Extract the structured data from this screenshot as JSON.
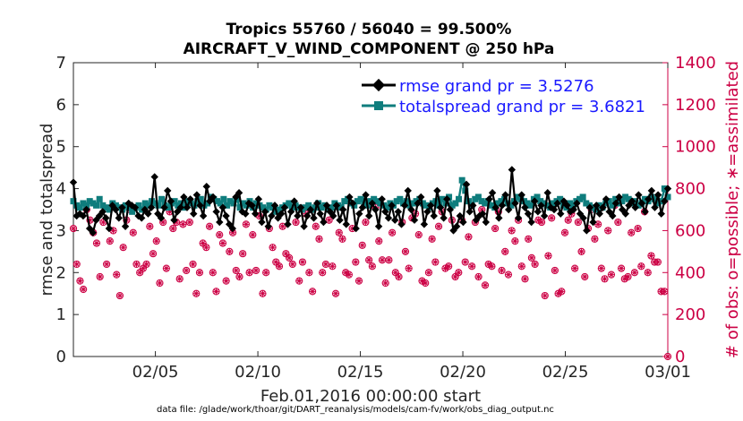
{
  "chart_data": {
    "type": "line",
    "title_line1": "Tropics 55760 / 56040 = 99.500%",
    "title_line2": "AIRCRAFT_V_WIND_COMPONENT @ 250 hPa",
    "ylabel_left": "rmse and totalspread",
    "ylabel_right": "# of obs: o=possible; ∗=assimilated",
    "xlabel": "Feb.01,2016 00:00:00 start",
    "footnote": "data file: /glade/work/thoar/git/DART_reanalysis/models/cam-fv/work/obs_diag_output.nc",
    "x_range_days": [
      1,
      30
    ],
    "ylim_left": [
      0,
      7
    ],
    "ylim_right": [
      0,
      1400
    ],
    "yticks_left": [
      "0",
      "1",
      "2",
      "3",
      "4",
      "5",
      "6",
      "7"
    ],
    "yticks_right": [
      "0",
      "200",
      "400",
      "600",
      "800",
      "1000",
      "1200",
      "1400"
    ],
    "xticks": [
      {
        "day": 5,
        "label": "02/05"
      },
      {
        "day": 10,
        "label": "02/10"
      },
      {
        "day": 15,
        "label": "02/15"
      },
      {
        "day": 20,
        "label": "02/20"
      },
      {
        "day": 25,
        "label": "02/25"
      },
      {
        "day": 30,
        "label": "03/01"
      }
    ],
    "legend_position": "top-right",
    "colors": {
      "rmse": "#000000",
      "spread": "#0f7d7d",
      "obs": "#cc0044",
      "legend_text": "#1a1aff"
    },
    "series": [
      {
        "name": "rmse grand pr = 3.5276",
        "key": "rmse",
        "values": [
          4.15,
          3.35,
          3.4,
          3.35,
          3.5,
          3.05,
          2.95,
          3.25,
          3.35,
          3.45,
          3.3,
          3.05,
          3.6,
          3.5,
          3.3,
          3.55,
          3.1,
          3.65,
          3.6,
          3.55,
          3.35,
          3.3,
          3.5,
          3.4,
          3.55,
          4.28,
          3.4,
          3.3,
          3.55,
          3.95,
          3.7,
          3.25,
          3.45,
          3.55,
          3.8,
          3.55,
          3.75,
          3.4,
          3.85,
          3.6,
          3.35,
          4.05,
          3.7,
          3.8,
          3.45,
          3.2,
          3.55,
          3.35,
          3.15,
          3.05,
          3.8,
          3.9,
          3.45,
          3.4,
          3.65,
          3.6,
          3.4,
          3.75,
          3.2,
          3.45,
          3.1,
          3.35,
          3.6,
          3.3,
          3.4,
          3.55,
          3.15,
          3.45,
          3.7,
          3.35,
          3.55,
          3.1,
          3.35,
          3.5,
          3.3,
          3.65,
          3.4,
          3.2,
          3.6,
          3.45,
          3.35,
          3.6,
          3.25,
          3.5,
          3.15,
          3.8,
          3.65,
          3.05,
          3.4,
          3.55,
          3.85,
          3.35,
          3.65,
          3.5,
          3.1,
          3.75,
          3.45,
          3.3,
          3.6,
          3.25,
          3.45,
          3.15,
          3.6,
          3.95,
          3.5,
          3.25,
          3.65,
          3.8,
          3.15,
          3.45,
          3.6,
          3.35,
          3.95,
          3.55,
          3.3,
          3.75,
          3.5,
          3.0,
          3.1,
          3.35,
          3.2,
          4.1,
          3.45,
          3.6,
          3.25,
          3.35,
          3.4,
          3.2,
          3.75,
          3.9,
          3.55,
          3.3,
          3.6,
          3.85,
          3.5,
          4.45,
          3.65,
          3.3,
          3.85,
          3.55,
          3.4,
          3.2,
          3.7,
          3.45,
          3.6,
          3.35,
          3.9,
          3.55,
          3.5,
          3.65,
          3.4,
          3.7,
          3.6,
          3.45,
          3.5,
          3.65,
          3.4,
          3.3,
          3.0,
          3.55,
          3.2,
          3.6,
          3.4,
          3.55,
          3.75,
          3.45,
          3.35,
          3.65,
          3.8,
          3.5,
          3.4,
          3.6,
          3.7,
          3.55,
          3.85,
          3.65,
          3.45,
          3.75,
          3.95,
          3.55,
          3.85,
          3.4,
          3.7,
          4.0
        ]
      },
      {
        "name": "totalspread grand pr = 3.6821",
        "key": "spread",
        "values": [
          3.7,
          3.6,
          3.55,
          3.65,
          3.6,
          3.7,
          3.65,
          3.6,
          3.75,
          3.6,
          3.55,
          3.5,
          3.65,
          3.6,
          3.55,
          3.5,
          3.6,
          3.55,
          3.45,
          3.55,
          3.6,
          3.5,
          3.65,
          3.6,
          3.7,
          3.65,
          3.6,
          3.75,
          3.6,
          3.55,
          3.65,
          3.7,
          3.6,
          3.65,
          3.55,
          3.7,
          3.65,
          3.6,
          3.7,
          3.75,
          3.6,
          3.65,
          3.8,
          3.75,
          3.7,
          3.65,
          3.75,
          3.6,
          3.7,
          3.65,
          3.75,
          3.55,
          3.65,
          3.6,
          3.7,
          3.55,
          3.65,
          3.6,
          3.55,
          3.5,
          3.6,
          3.55,
          3.45,
          3.5,
          3.55,
          3.6,
          3.65,
          3.55,
          3.6,
          3.55,
          3.5,
          3.55,
          3.6,
          3.5,
          3.55,
          3.65,
          3.55,
          3.6,
          3.5,
          3.55,
          3.65,
          3.6,
          3.55,
          3.7,
          3.75,
          3.65,
          3.6,
          3.7,
          3.75,
          3.65,
          3.6,
          3.7,
          3.75,
          3.7,
          3.65,
          3.6,
          3.55,
          3.65,
          3.6,
          3.7,
          3.75,
          3.65,
          3.7,
          3.6,
          3.65,
          3.7,
          3.75,
          3.65,
          3.6,
          3.55,
          3.65,
          3.7,
          3.6,
          3.75,
          3.65,
          3.8,
          3.6,
          3.65,
          3.75,
          4.2,
          3.95,
          3.7,
          3.6,
          3.75,
          3.8,
          3.7,
          3.65,
          3.7,
          3.6,
          3.55,
          3.65,
          3.7,
          3.75,
          3.65,
          3.6,
          3.7,
          3.8,
          3.75,
          3.7,
          3.65,
          3.6,
          3.75,
          3.8,
          3.7,
          3.65,
          3.6,
          3.55,
          3.65,
          3.7,
          3.75,
          3.6,
          3.55,
          3.65,
          3.6,
          3.7,
          3.75,
          3.8,
          3.65,
          3.6,
          3.55,
          3.5,
          3.6,
          3.55,
          3.65,
          3.7,
          3.6,
          3.75,
          3.65,
          3.7,
          3.8,
          3.75,
          3.65,
          3.7,
          3.6,
          3.65,
          3.75,
          3.7,
          3.8,
          3.75,
          3.65,
          3.7,
          4.0,
          3.8
        ]
      },
      {
        "name": "# of obs (possible / assimilated)",
        "key": "obs",
        "values": [
          610,
          440,
          360,
          320,
          700,
          650,
          590,
          540,
          380,
          640,
          440,
          550,
          600,
          390,
          290,
          520,
          650,
          700,
          590,
          440,
          400,
          420,
          440,
          620,
          490,
          550,
          350,
          640,
          420,
          690,
          610,
          640,
          370,
          630,
          410,
          640,
          440,
          300,
          400,
          540,
          520,
          620,
          400,
          310,
          580,
          540,
          360,
          500,
          590,
          410,
          380,
          490,
          630,
          400,
          580,
          410,
          670,
          300,
          400,
          610,
          520,
          450,
          430,
          620,
          490,
          470,
          440,
          640,
          360,
          450,
          680,
          400,
          310,
          620,
          560,
          400,
          440,
          650,
          430,
          300,
          590,
          560,
          400,
          390,
          610,
          450,
          360,
          530,
          640,
          460,
          430,
          710,
          550,
          460,
          350,
          460,
          590,
          400,
          380,
          640,
          500,
          420,
          660,
          680,
          580,
          360,
          350,
          400,
          560,
          450,
          620,
          690,
          420,
          430,
          650,
          380,
          400,
          650,
          450,
          570,
          430,
          640,
          380,
          700,
          340,
          440,
          430,
          610,
          690,
          410,
          500,
          390,
          600,
          550,
          650,
          430,
          370,
          560,
          470,
          440,
          650,
          640,
          290,
          480,
          660,
          410,
          300,
          310,
          590,
          650,
          680,
          420,
          640,
          500,
          380,
          610,
          700,
          560,
          630,
          420,
          370,
          600,
          390,
          720,
          640,
          420,
          370,
          380,
          590,
          400,
          610,
          430,
          690,
          400,
          480,
          450,
          450,
          310,
          310,
          0
        ]
      }
    ]
  }
}
